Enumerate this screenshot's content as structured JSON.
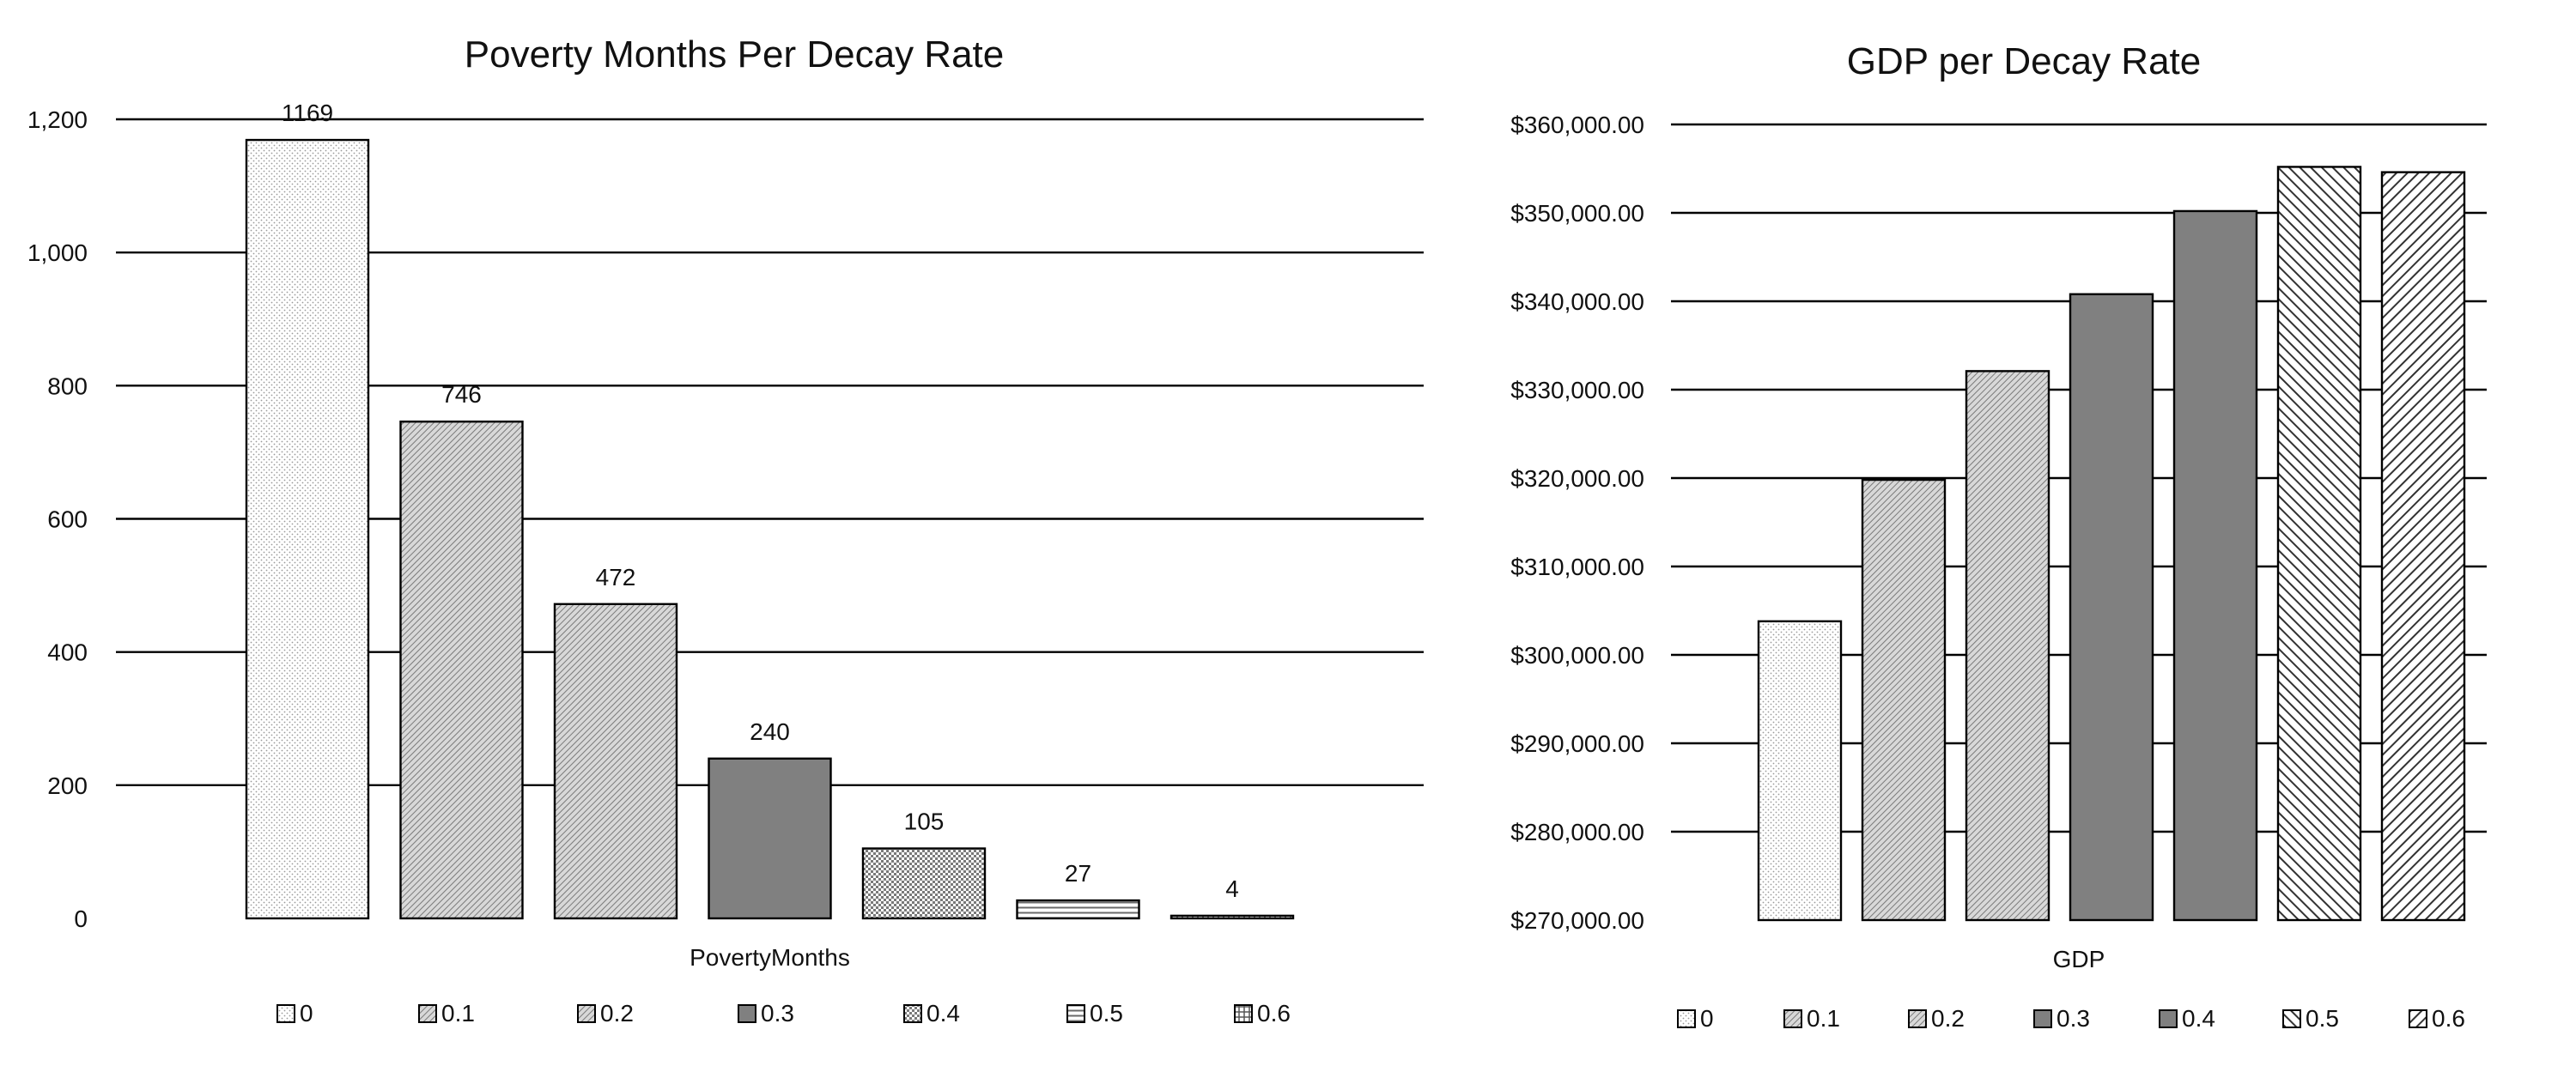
{
  "chart_data": [
    {
      "type": "bar",
      "title": "Poverty Months Per Decay Rate",
      "xlabel": "PovertyMonths",
      "ylabel": "",
      "categories": [
        "PovertyMonths"
      ],
      "ylim": [
        0,
        1200
      ],
      "yticks": [
        "0",
        "200",
        "400",
        "600",
        "800",
        "1,000",
        "1,200"
      ],
      "grid": true,
      "legend_position": "bottom",
      "series": [
        {
          "name": "0",
          "values": [
            1169
          ],
          "label": "1169",
          "pattern": "dots",
          "color": "#f2f2f2"
        },
        {
          "name": "0.1",
          "values": [
            746
          ],
          "label": "746",
          "pattern": "diag-fine",
          "color": "#c8c8c8"
        },
        {
          "name": "0.2",
          "values": [
            472
          ],
          "label": "472",
          "pattern": "diag-fine",
          "color": "#bdbdbd"
        },
        {
          "name": "0.3",
          "values": [
            240
          ],
          "label": "240",
          "pattern": "solid",
          "color": "#808080"
        },
        {
          "name": "0.4",
          "values": [
            105
          ],
          "label": "105",
          "pattern": "checker",
          "color": "#d9d9d9"
        },
        {
          "name": "0.5",
          "values": [
            27
          ],
          "label": "27",
          "pattern": "horizontal",
          "color": "#eeeeee"
        },
        {
          "name": "0.6",
          "values": [
            4
          ],
          "label": "4",
          "pattern": "grid",
          "color": "#eeeeee"
        }
      ]
    },
    {
      "type": "bar",
      "title": "GDP per Decay Rate",
      "xlabel": "GDP",
      "ylabel": "",
      "categories": [
        "GDP"
      ],
      "ylim": [
        270000,
        360000
      ],
      "yticks": [
        "$270,000.00",
        "$280,000.00",
        "$290,000.00",
        "$300,000.00",
        "$310,000.00",
        "$320,000.00",
        "$330,000.00",
        "$340,000.00",
        "$350,000.00",
        "$360,000.00"
      ],
      "grid": true,
      "legend_position": "bottom",
      "series": [
        {
          "name": "0",
          "values": [
            303800
          ],
          "pattern": "dots",
          "color": "#f2f2f2"
        },
        {
          "name": "0.1",
          "values": [
            319800
          ],
          "pattern": "diag-fine",
          "color": "#c8c8c8"
        },
        {
          "name": "0.2",
          "values": [
            332100
          ],
          "pattern": "diag-fine",
          "color": "#bdbdbd"
        },
        {
          "name": "0.3",
          "values": [
            340800
          ],
          "pattern": "solid",
          "color": "#808080"
        },
        {
          "name": "0.4",
          "values": [
            350200
          ],
          "pattern": "solid",
          "color": "#808080"
        },
        {
          "name": "0.5",
          "values": [
            355200
          ],
          "pattern": "diag-back",
          "color": "#ffffff"
        },
        {
          "name": "0.6",
          "values": [
            354600
          ],
          "pattern": "diag-fwd",
          "color": "#ffffff"
        }
      ]
    }
  ]
}
